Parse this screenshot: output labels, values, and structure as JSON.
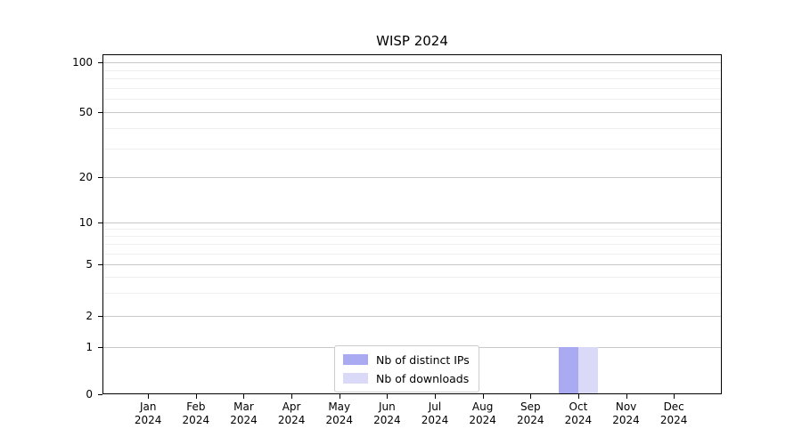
{
  "chart_data": {
    "type": "bar",
    "title": "WISP 2024",
    "categories": [
      "Jan",
      "Feb",
      "Mar",
      "Apr",
      "May",
      "Jun",
      "Jul",
      "Aug",
      "Sep",
      "Oct",
      "Nov",
      "Dec"
    ],
    "year": "2024",
    "series": [
      {
        "name": "Nb of distinct IPs",
        "color": "#aaaaf2",
        "values": [
          0,
          0,
          0,
          0,
          0,
          0,
          0,
          0,
          0,
          1,
          0,
          0
        ]
      },
      {
        "name": "Nb of downloads",
        "color": "#dadaf8",
        "values": [
          0,
          0,
          0,
          0,
          0,
          0,
          0,
          0,
          0,
          1,
          0,
          0
        ]
      }
    ],
    "yticks": [
      0,
      1,
      2,
      5,
      10,
      20,
      50,
      100
    ],
    "yscale": "log above 1, linear 0-1",
    "ylim": [
      0,
      112
    ],
    "xlabel": "",
    "ylabel": "",
    "grid": true,
    "legend_position": "lower center"
  },
  "colors": {
    "grid_major": "#c9c9c9",
    "grid_minor": "#efefef",
    "axis": "#000000",
    "legend_border": "#cccccc"
  }
}
